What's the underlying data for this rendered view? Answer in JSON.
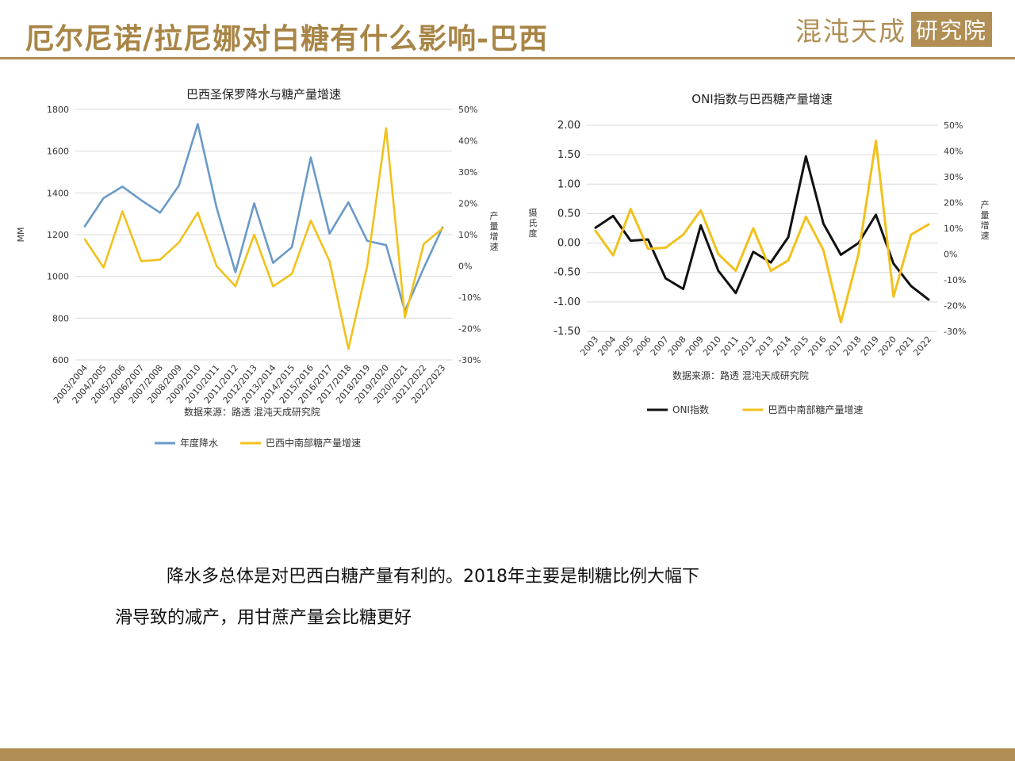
{
  "page": {
    "title": "厄尔尼诺/拉尼娜对白糖有什么影响-巴西",
    "logo_text": "混沌天成",
    "logo_box": "研究院"
  },
  "body": {
    "line1": "降水多总体是对巴西白糖产量有利的。2018年主要是制糖比例大幅下",
    "line2": "滑导致的减产，用甘蔗产量会比糖更好"
  },
  "chart_data": [
    {
      "type": "line",
      "title": "巴西圣保罗降水与糖产量增速",
      "source": "数据来源：路透  混沌天成研究院",
      "categories": [
        "2003/2004",
        "2004/2005",
        "2005/2006",
        "2006/2007",
        "2007/2008",
        "2008/2009",
        "2009/2010",
        "2010/2011",
        "2011/2012",
        "2012/2013",
        "2013/2014",
        "2014/2015",
        "2015/2016",
        "2016/2017",
        "2017/2018",
        "2018/2019",
        "2019/2020",
        "2020/2021",
        "2021/2022",
        "2022/2023"
      ],
      "ylabel_left": "MM",
      "ylabel_right": "产量增速",
      "ylim_left": [
        600,
        1800
      ],
      "yticks_left": [
        "600",
        "800",
        "1000",
        "1200",
        "1400",
        "1600",
        "1800"
      ],
      "ylim_right": [
        -30,
        50
      ],
      "yticks_right": [
        "-30%",
        "-20%",
        "-10%",
        "0%",
        "10%",
        "20%",
        "30%",
        "40%",
        "50%"
      ],
      "series": [
        {
          "name": "年度降水",
          "axis": "left",
          "color": "#6a9ac8",
          "values": [
            1240,
            1375,
            1430,
            1365,
            1305,
            1435,
            1730,
            1330,
            1020,
            1350,
            1065,
            1140,
            1570,
            1205,
            1355,
            1170,
            1150,
            835,
            1040,
            1235
          ]
        },
        {
          "name": "巴西中南部糖产量增速",
          "axis": "right",
          "color": "#f2c11c",
          "values": [
            8.5,
            -0.5,
            17.5,
            1.5,
            2,
            7.5,
            17,
            0,
            -6.5,
            10,
            -6.5,
            -2.5,
            14.5,
            1.5,
            -26.5,
            0,
            44,
            -16.5,
            7,
            12
          ]
        }
      ],
      "legend_position": "bottom"
    },
    {
      "type": "line",
      "title": "ONI指数与巴西糖产量增速",
      "source": "数据来源：路透  混沌天成研究院",
      "categories": [
        "2003",
        "2004",
        "2005",
        "2006",
        "2007",
        "2008",
        "2009",
        "2010",
        "2011",
        "2012",
        "2013",
        "2014",
        "2015",
        "2016",
        "2017",
        "2018",
        "2019",
        "2020",
        "2021",
        "2022"
      ],
      "ylabel_left": "摄氏度",
      "ylabel_right": "产量增速",
      "ylim_left": [
        -1.5,
        2.0
      ],
      "yticks_left": [
        "-1.50",
        "-1.00",
        "-0.50",
        "0.00",
        "0.50",
        "1.00",
        "1.50",
        "2.00"
      ],
      "ylim_right": [
        -30,
        50
      ],
      "yticks_right": [
        "-30%",
        "-20%",
        "-10%",
        "0%",
        "10%",
        "20%",
        "30%",
        "40%",
        "50%"
      ],
      "series": [
        {
          "name": "ONI指数",
          "axis": "left",
          "color": "#111111",
          "values": [
            0.26,
            0.46,
            0.04,
            0.06,
            -0.6,
            -0.78,
            0.3,
            -0.47,
            -0.85,
            -0.15,
            -0.33,
            0.1,
            1.47,
            0.33,
            -0.2,
            0,
            0.48,
            -0.35,
            -0.73,
            -0.96
          ]
        },
        {
          "name": "巴西中南部糖产量增速",
          "axis": "right",
          "color": "#f2c11c",
          "values": [
            9,
            -0.5,
            17.5,
            2,
            2.5,
            7.5,
            17,
            0,
            -6.5,
            10,
            -6.5,
            -2.5,
            14.5,
            1.5,
            -26.5,
            0,
            44,
            -16.5,
            7.5,
            11.5
          ]
        }
      ],
      "legend_position": "bottom"
    }
  ]
}
